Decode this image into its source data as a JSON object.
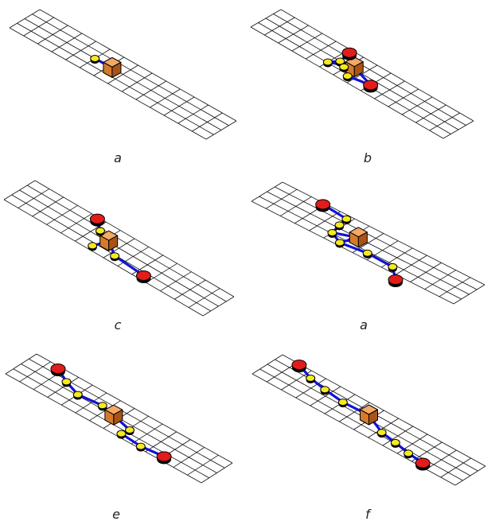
{
  "colors": {
    "grid": "#111111",
    "path": "#1212d6",
    "node": "#f4ea1e",
    "endpoint": "#e41b1b",
    "box_front": "#d57a2b",
    "box_top": "#f3a866",
    "box_side": "#a85417",
    "outline": "#000000"
  },
  "grid": {
    "segments_along": 14,
    "segments_across": 4
  },
  "panels": [
    {
      "label": "a",
      "box": {
        "u": 6.5,
        "v": 2.5
      },
      "nodes": [
        {
          "u": 5,
          "v": 2,
          "type": "yellow"
        }
      ],
      "links": [
        [
          0,
          "box"
        ]
      ]
    },
    {
      "label": "b",
      "box": {
        "u": 6.6,
        "v": 2.3
      },
      "nodes": [
        {
          "u": 5.2,
          "v": 0.4,
          "type": "red"
        },
        {
          "u": 5.4,
          "v": 2.0,
          "type": "yellow"
        },
        {
          "u": 5.9,
          "v": 2.4,
          "type": "yellow"
        },
        {
          "u": 5.0,
          "v": 2.9,
          "type": "yellow"
        },
        {
          "u": 6.6,
          "v": 3.2,
          "type": "yellow"
        },
        {
          "u": 8.0,
          "v": 2.7,
          "type": "red"
        }
      ],
      "links": [
        [
          0,
          1
        ],
        [
          1,
          2
        ],
        [
          2,
          "box"
        ],
        [
          1,
          "box"
        ],
        [
          3,
          "box"
        ],
        [
          3,
          1
        ],
        [
          4,
          "box"
        ],
        [
          4,
          5
        ],
        [
          5,
          "box"
        ]
      ]
    },
    {
      "label": "c",
      "box": {
        "u": 6.5,
        "v": 2.4
      },
      "nodes": [
        {
          "u": 4.5,
          "v": 0.2,
          "type": "red"
        },
        {
          "u": 5.3,
          "v": 1.3,
          "type": "yellow"
        },
        {
          "u": 5.9,
          "v": 3.4,
          "type": "yellow"
        },
        {
          "u": 7.3,
          "v": 3.1,
          "type": "yellow"
        },
        {
          "u": 9.5,
          "v": 3.4,
          "type": "red"
        }
      ],
      "links": [
        [
          0,
          1
        ],
        [
          1,
          "box"
        ],
        [
          2,
          "box"
        ],
        [
          3,
          "box"
        ],
        [
          3,
          4
        ]
      ]
    },
    {
      "label": "a",
      "box": {
        "u": 6.6,
        "v": 2.5
      },
      "nodes": [
        {
          "u": 2.9,
          "v": 0.2,
          "type": "red"
        },
        {
          "u": 4.7,
          "v": 0.5,
          "type": "yellow"
        },
        {
          "u": 4.8,
          "v": 1.6,
          "type": "yellow"
        },
        {
          "u": 5.0,
          "v": 2.9,
          "type": "yellow"
        },
        {
          "u": 5.9,
          "v": 3.6,
          "type": "yellow"
        },
        {
          "u": 7.6,
          "v": 3.2,
          "type": "yellow"
        },
        {
          "u": 9.4,
          "v": 3.3,
          "type": "yellow"
        },
        {
          "u": 10.3,
          "v": 4.6,
          "type": "red"
        }
      ],
      "links": [
        [
          0,
          1
        ],
        [
          1,
          2
        ],
        [
          2,
          3
        ],
        [
          3,
          "box"
        ],
        [
          4,
          "box"
        ],
        [
          3,
          4
        ],
        [
          4,
          5
        ],
        [
          5,
          6
        ],
        [
          6,
          7
        ]
      ]
    },
    {
      "label": "e",
      "box": {
        "u": 6.9,
        "v": 2.5
      },
      "nodes": [
        {
          "u": 1.7,
          "v": 0.3,
          "type": "red"
        },
        {
          "u": 2.8,
          "v": 1.2,
          "type": "yellow"
        },
        {
          "u": 4.0,
          "v": 1.9,
          "type": "yellow"
        },
        {
          "u": 5.6,
          "v": 1.6,
          "type": "yellow"
        },
        {
          "u": 8.1,
          "v": 2.6,
          "type": "yellow"
        },
        {
          "u": 8.0,
          "v": 3.5,
          "type": "yellow"
        },
        {
          "u": 9.5,
          "v": 3.7,
          "type": "yellow"
        },
        {
          "u": 11.0,
          "v": 3.4,
          "type": "red"
        }
      ],
      "links": [
        [
          0,
          1
        ],
        [
          1,
          2
        ],
        [
          2,
          3
        ],
        [
          3,
          "box"
        ],
        [
          4,
          "box"
        ],
        [
          4,
          5
        ],
        [
          5,
          6
        ],
        [
          6,
          7
        ]
      ]
    },
    {
      "label": "f",
      "box": {
        "u": 7.0,
        "v": 2.0
      },
      "nodes": [
        {
          "u": 1.2,
          "v": 0.1,
          "type": "red"
        },
        {
          "u": 2.4,
          "v": 0.9,
          "type": "yellow"
        },
        {
          "u": 3.6,
          "v": 1.3,
          "type": "yellow"
        },
        {
          "u": 5.0,
          "v": 1.6,
          "type": "yellow"
        },
        {
          "u": 8.2,
          "v": 2.6,
          "type": "yellow"
        },
        {
          "u": 9.3,
          "v": 2.9,
          "type": "yellow"
        },
        {
          "u": 10.4,
          "v": 3.3,
          "type": "yellow"
        },
        {
          "u": 11.5,
          "v": 3.5,
          "type": "red"
        }
      ],
      "links": [
        [
          0,
          1
        ],
        [
          1,
          2
        ],
        [
          2,
          3
        ],
        [
          3,
          "box"
        ],
        [
          4,
          "box"
        ],
        [
          4,
          5
        ],
        [
          5,
          6
        ],
        [
          6,
          7
        ]
      ]
    }
  ]
}
